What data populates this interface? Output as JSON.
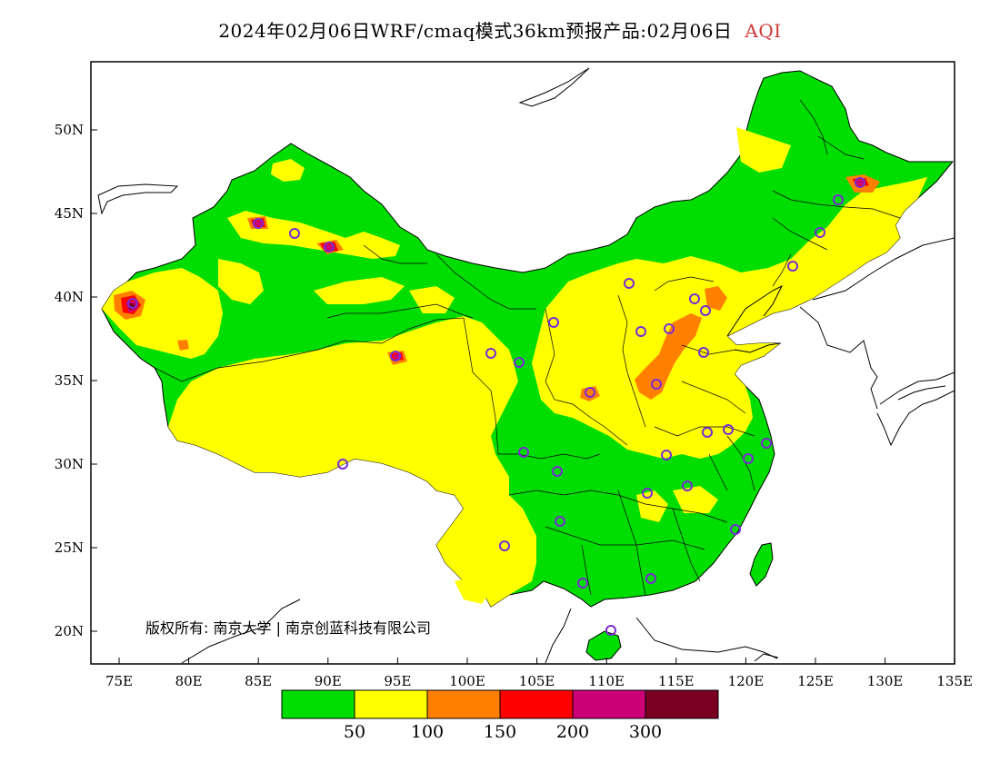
{
  "title": {
    "main": "2024年02月06日WRF/cmaq模式36km预报产品:02月06日",
    "variable": "AQI"
  },
  "axes": {
    "lat_labels": [
      "20N",
      "25N",
      "30N",
      "35N",
      "40N",
      "45N",
      "50N"
    ],
    "lon_labels": [
      "75E",
      "80E",
      "85E",
      "90E",
      "95E",
      "100E",
      "105E",
      "110E",
      "115E",
      "120E",
      "125E",
      "130E",
      "135E"
    ]
  },
  "copyright": "版权所有: 南京大学 | 南京创蓝科技有限公司",
  "legend": {
    "colors": [
      "#00dd00",
      "#ffff00",
      "#ff8000",
      "#ff0000",
      "#cc0077",
      "#7a0022"
    ],
    "labels": [
      "50",
      "100",
      "150",
      "200",
      "300"
    ]
  },
  "colors": {
    "good": "#00dd00",
    "moderate": "#ffff00",
    "unhealthy_sensitive": "#ff8000",
    "unhealthy": "#ff0000",
    "very_unhealthy": "#cc0077",
    "hazardous": "#7a0022",
    "station_marker": "#7a2bd6"
  }
}
